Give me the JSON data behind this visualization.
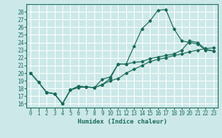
{
  "xlabel": "Humidex (Indice chaleur)",
  "bg_color": "#cce8e8",
  "grid_color": "#ffffff",
  "line_color": "#1a6b5a",
  "xlim": [
    -0.5,
    23.5
  ],
  "ylim": [
    15.5,
    29.0
  ],
  "xticks": [
    0,
    1,
    2,
    3,
    4,
    5,
    6,
    7,
    8,
    9,
    10,
    11,
    12,
    13,
    14,
    15,
    16,
    17,
    18,
    19,
    20,
    21,
    22,
    23
  ],
  "yticks": [
    16,
    17,
    18,
    19,
    20,
    21,
    22,
    23,
    24,
    25,
    26,
    27,
    28
  ],
  "line1_x": [
    0,
    1,
    2,
    3,
    4,
    5,
    6,
    7,
    8,
    9,
    10,
    11,
    12,
    13,
    14,
    15,
    16,
    17,
    18,
    19,
    20,
    21,
    22,
    23
  ],
  "line1_y": [
    20.0,
    18.8,
    17.5,
    17.3,
    16.0,
    17.8,
    18.3,
    18.2,
    18.1,
    18.5,
    19.3,
    21.2,
    21.2,
    23.5,
    25.8,
    26.8,
    28.2,
    28.3,
    25.8,
    24.2,
    24.0,
    23.8,
    23.0,
    22.9
  ],
  "line2_x": [
    0,
    1,
    2,
    3,
    4,
    5,
    6,
    7,
    8,
    9,
    10,
    11,
    12,
    13,
    14,
    15,
    16,
    17,
    18,
    19,
    20,
    21,
    22,
    23
  ],
  "line2_y": [
    20.0,
    18.8,
    17.5,
    17.3,
    16.0,
    17.8,
    18.3,
    18.2,
    18.1,
    19.2,
    19.5,
    21.2,
    21.2,
    21.4,
    21.5,
    21.9,
    22.1,
    22.3,
    22.5,
    23.0,
    24.2,
    24.0,
    23.1,
    22.9
  ],
  "line3_x": [
    0,
    1,
    2,
    3,
    4,
    5,
    6,
    7,
    8,
    9,
    10,
    11,
    12,
    13,
    14,
    15,
    16,
    17,
    18,
    19,
    20,
    21,
    22,
    23
  ],
  "line3_y": [
    20.0,
    18.8,
    17.5,
    17.3,
    16.0,
    17.8,
    18.1,
    18.2,
    18.1,
    18.5,
    19.0,
    19.3,
    20.0,
    20.5,
    21.0,
    21.5,
    21.8,
    22.0,
    22.3,
    22.5,
    22.8,
    23.0,
    23.2,
    23.3
  ]
}
